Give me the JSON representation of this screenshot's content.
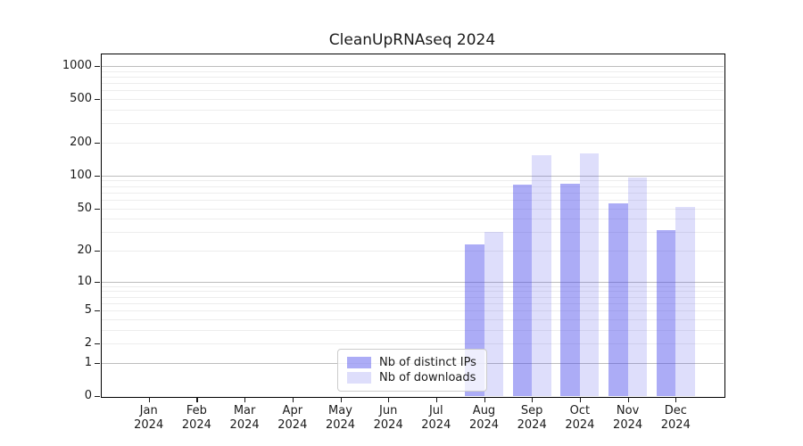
{
  "title": "CleanUpRNAseq 2024",
  "chart_data": {
    "type": "bar",
    "title": "CleanUpRNAseq 2024",
    "categories": [
      "Jan 2024",
      "Feb 2024",
      "Mar 2024",
      "Apr 2024",
      "May 2024",
      "Jun 2024",
      "Jul 2024",
      "Aug 2024",
      "Sep 2024",
      "Oct 2024",
      "Nov 2024",
      "Dec 2024"
    ],
    "series": [
      {
        "name": "Nb of distinct IPs",
        "color": "#4646eb",
        "alpha": 0.45,
        "color_on_white": "#a9a9f6",
        "values": [
          0,
          0,
          0,
          0,
          0,
          0,
          0,
          23,
          83,
          84,
          56,
          31
        ]
      },
      {
        "name": "Nb of downloads",
        "color": "#4646eb",
        "alpha": 0.18,
        "color_on_white": "#dcdcf9",
        "values": [
          0,
          0,
          0,
          0,
          0,
          0,
          0,
          30,
          153,
          160,
          97,
          51
        ]
      }
    ],
    "xlabel": "",
    "ylabel": "",
    "y_ticks": [
      0,
      1,
      2,
      5,
      10,
      20,
      50,
      100,
      200,
      500,
      1000
    ],
    "y_scale": "log1p",
    "ylim": [
      0,
      1300
    ],
    "grid": "both",
    "grid_major_color": "#bdbdbd",
    "grid_minor_color": "#ededed",
    "legend_position": "lower center"
  }
}
